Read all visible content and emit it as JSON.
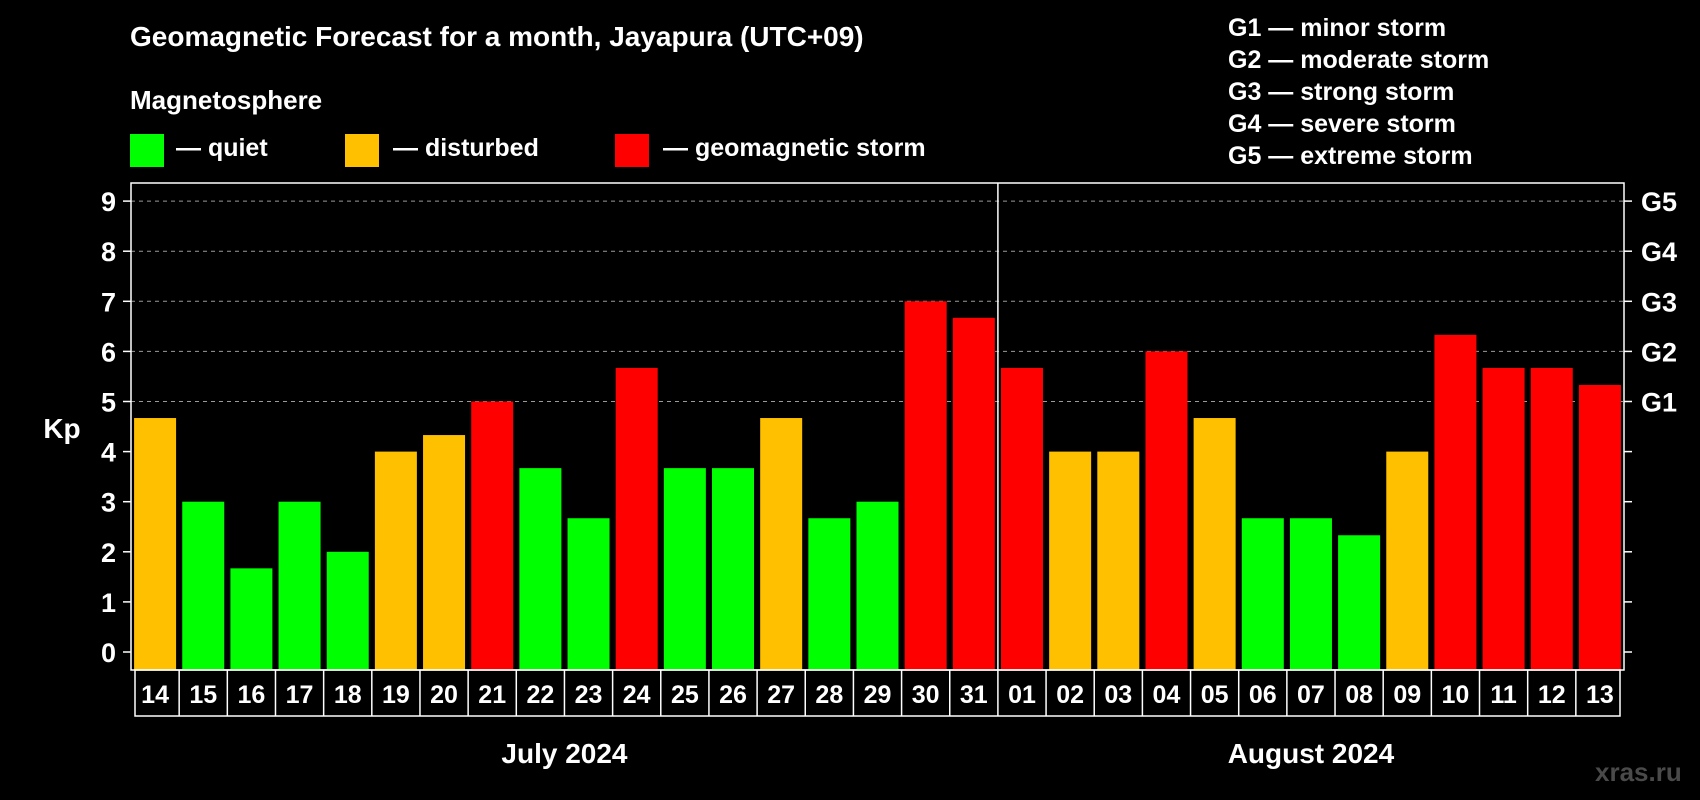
{
  "title": "Geomagnetic Forecast for a month, Jayapura (UTC+09)",
  "magnetosphere": {
    "heading": "Magnetosphere",
    "items": [
      {
        "label": "— quiet",
        "color": "#00ff00"
      },
      {
        "label": "— disturbed",
        "color": "#ffc000"
      },
      {
        "label": "— geomagnetic storm",
        "color": "#ff0000"
      }
    ]
  },
  "storm_scale": [
    "G1 — minor storm",
    "G2 — moderate storm",
    "G3 — strong storm",
    "G4 — severe storm",
    "G5 — extreme storm"
  ],
  "watermark": "xras.ru",
  "chart_data": {
    "type": "bar",
    "title": "Geomagnetic Forecast for a month, Jayapura (UTC+09)",
    "ylabel": "Kp",
    "ylim": [
      0,
      9
    ],
    "yticks": [
      "0",
      "1",
      "2",
      "3",
      "4",
      "5",
      "6",
      "7",
      "8",
      "9"
    ],
    "right_axis": [
      {
        "kp": 5,
        "label": "G1"
      },
      {
        "kp": 6,
        "label": "G2"
      },
      {
        "kp": 7,
        "label": "G3"
      },
      {
        "kp": 8,
        "label": "G4"
      },
      {
        "kp": 9,
        "label": "G5"
      }
    ],
    "months": [
      {
        "label": "July 2024",
        "count": 18
      },
      {
        "label": "August 2024",
        "count": 13
      }
    ],
    "categories": [
      "14",
      "15",
      "16",
      "17",
      "18",
      "19",
      "20",
      "21",
      "22",
      "23",
      "24",
      "25",
      "26",
      "27",
      "28",
      "29",
      "30",
      "31",
      "01",
      "02",
      "03",
      "04",
      "05",
      "06",
      "07",
      "08",
      "09",
      "10",
      "11",
      "12",
      "13"
    ],
    "values": [
      4.67,
      3.0,
      1.67,
      3.0,
      2.0,
      4.0,
      4.33,
      5.0,
      3.67,
      2.67,
      5.67,
      3.67,
      3.67,
      4.67,
      2.67,
      3.0,
      7.0,
      6.67,
      5.67,
      4.0,
      4.0,
      6.0,
      4.67,
      2.67,
      2.67,
      2.33,
      4.0,
      6.33,
      5.67,
      5.67,
      5.33
    ],
    "status": [
      "disturbed",
      "quiet",
      "quiet",
      "quiet",
      "quiet",
      "disturbed",
      "disturbed",
      "storm",
      "quiet",
      "quiet",
      "storm",
      "quiet",
      "quiet",
      "disturbed",
      "quiet",
      "quiet",
      "storm",
      "storm",
      "storm",
      "disturbed",
      "disturbed",
      "storm",
      "disturbed",
      "quiet",
      "quiet",
      "quiet",
      "disturbed",
      "storm",
      "storm",
      "storm",
      "storm"
    ],
    "colors": {
      "quiet": "#00ff00",
      "disturbed": "#ffc000",
      "storm": "#ff0000"
    }
  }
}
